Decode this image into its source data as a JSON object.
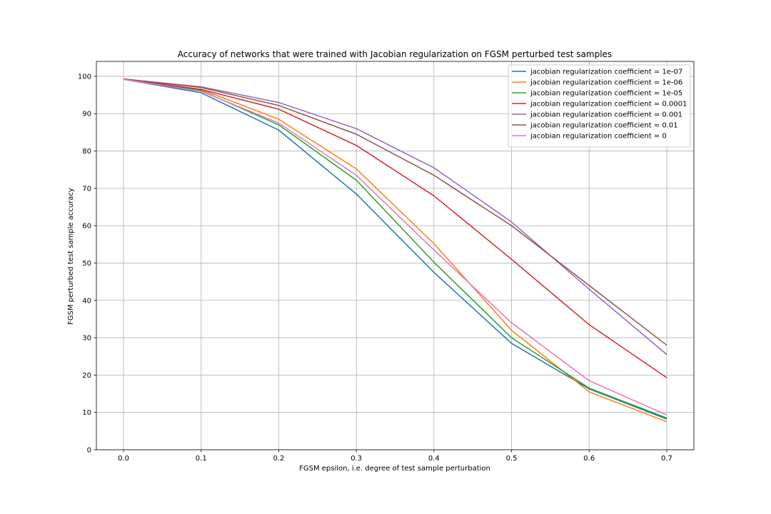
{
  "chart_data": {
    "type": "line",
    "title": "Accuracy of networks that were trained with Jacobian regularization on FGSM perturbed test samples",
    "xlabel": "FGSM epsilon, i.e. degree of test sample perturbation",
    "ylabel": "FGSM perturbed test sample accuracy",
    "x": [
      0.0,
      0.1,
      0.2,
      0.3,
      0.4,
      0.5,
      0.6,
      0.7
    ],
    "x_ticks": [
      "0.0",
      "0.1",
      "0.2",
      "0.3",
      "0.4",
      "0.5",
      "0.6",
      "0.7"
    ],
    "y_ticks": [
      "0",
      "10",
      "20",
      "30",
      "40",
      "50",
      "60",
      "70",
      "80",
      "90",
      "100"
    ],
    "xlim": [
      -0.035,
      0.735
    ],
    "ylim": [
      0,
      104
    ],
    "grid": true,
    "legend_position": "top-right",
    "series": [
      {
        "name": "jacobian regularization coefficient = 1e-07",
        "color": "#1f77b4",
        "values": [
          99.2,
          95.6,
          85.6,
          68.5,
          47.5,
          28.5,
          16.3,
          8.2
        ]
      },
      {
        "name": "jacobian regularization coefficient = 1e-06",
        "color": "#ff7f0e",
        "values": [
          99.2,
          96.5,
          88.5,
          75.2,
          55.2,
          32.0,
          15.5,
          7.5
        ]
      },
      {
        "name": "jacobian regularization coefficient = 1e-05",
        "color": "#2ca02c",
        "values": [
          99.2,
          96.2,
          87.0,
          72.2,
          50.2,
          30.0,
          16.5,
          8.5
        ]
      },
      {
        "name": "jacobian regularization coefficient = 0.0001",
        "color": "#d62728",
        "values": [
          99.2,
          96.5,
          91.2,
          81.5,
          68.0,
          51.0,
          33.5,
          19.3
        ]
      },
      {
        "name": "jacobian regularization coefficient = 0.001",
        "color": "#9467bd",
        "values": [
          99.3,
          97.2,
          93.0,
          86.0,
          75.5,
          61.0,
          43.0,
          25.5
        ]
      },
      {
        "name": "jacobian regularization coefficient = 0.01",
        "color": "#8c564b",
        "values": [
          99.3,
          97.0,
          92.2,
          84.5,
          73.5,
          60.0,
          44.0,
          28.0
        ]
      },
      {
        "name": "jacobian regularization coefficient = 0",
        "color": "#e377c2",
        "values": [
          99.2,
          96.0,
          87.5,
          73.5,
          53.5,
          34.0,
          18.5,
          9.3
        ]
      }
    ]
  }
}
